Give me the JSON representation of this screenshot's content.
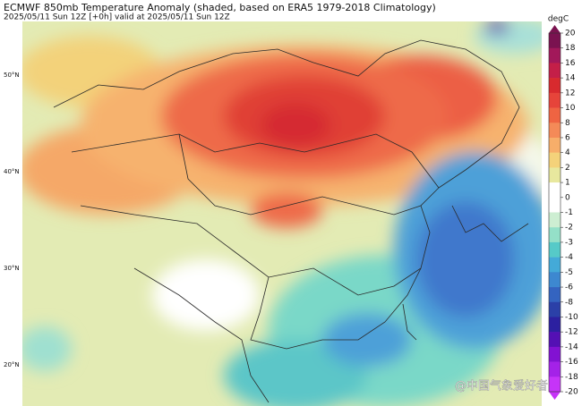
{
  "header": {
    "title": "ECMWF 850mb Temperature Anomaly (shaded, based on ERA5 1979-2018 Climatology)",
    "subtitle": "2025/05/11 Sun 12Z [+0h] valid at 2025/05/11 Sun 12Z"
  },
  "map": {
    "lat_labels": [
      "50°N",
      "40°N",
      "30°N",
      "20°N"
    ]
  },
  "colorbar": {
    "unit": "degC",
    "ticks": [
      20,
      18,
      16,
      14,
      12,
      10,
      8,
      6,
      4,
      2,
      1,
      0,
      -1,
      -2,
      -3,
      -4,
      -5,
      -6,
      -8,
      -10,
      -12,
      -14,
      -16,
      -18,
      -20
    ],
    "colors": [
      "#7a1250",
      "#a2185a",
      "#c41f48",
      "#d82a2e",
      "#e6443a",
      "#ef6442",
      "#f48a58",
      "#f7ae6a",
      "#f4d27a",
      "#e8e89e",
      "#ffffff",
      "#ffffff",
      "#cdeed2",
      "#94e0c8",
      "#56cac8",
      "#44aad8",
      "#3d88d0",
      "#3464c0",
      "#2b40a8",
      "#2c20a0",
      "#5410b4",
      "#8212d2",
      "#a422e8",
      "#c634f8"
    ]
  },
  "watermark": "@中国气象爱好者"
}
